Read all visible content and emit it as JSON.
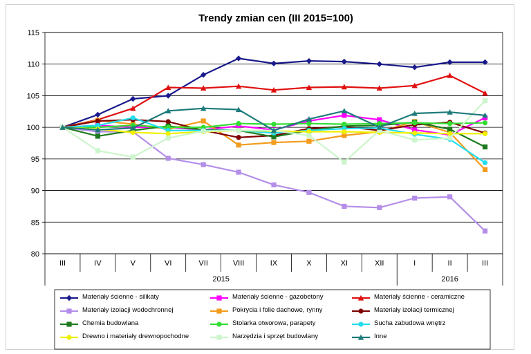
{
  "chart_data": {
    "type": "line",
    "title": "Trendy zmian cen (III 2015=100)",
    "xlabel": "",
    "ylabel": "",
    "ylim": [
      80,
      115
    ],
    "yticks": [
      80,
      85,
      90,
      95,
      100,
      105,
      110,
      115
    ],
    "categories": [
      "III",
      "IV",
      "V",
      "VI",
      "VII",
      "VIII",
      "IX",
      "X",
      "XI",
      "XII",
      "I",
      "II",
      "III"
    ],
    "year_groups": [
      {
        "label": "2015",
        "start": 0,
        "end": 9
      },
      {
        "label": "2016",
        "start": 10,
        "end": 12
      }
    ],
    "grid": true,
    "legend_position": "bottom",
    "series": [
      {
        "name": "Materiały ścienne - silikaty",
        "color": "#1a1a8c",
        "marker": "diamond",
        "values": [
          100,
          102.0,
          104.5,
          105.0,
          108.3,
          110.9,
          110.1,
          110.5,
          110.4,
          110.0,
          109.5,
          110.3,
          110.3
        ]
      },
      {
        "name": "Materiały ścienne - gazobetony",
        "color": "#ff00ff",
        "marker": "square",
        "values": [
          100,
          100.3,
          100.0,
          100.0,
          99.6,
          100.2,
          99.6,
          101.0,
          101.9,
          101.2,
          99.6,
          98.8,
          101.5
        ]
      },
      {
        "name": "Materiały ścienne - ceramiczne",
        "color": "#e01010",
        "marker": "triangle",
        "values": [
          100,
          101.2,
          103.0,
          106.3,
          106.2,
          106.5,
          105.9,
          106.3,
          106.4,
          106.2,
          106.6,
          108.2,
          105.4
        ]
      },
      {
        "name": "Materiały izolacji wodochronnej",
        "color": "#b48ee8",
        "marker": "square",
        "values": [
          100,
          99.3,
          99.3,
          95.1,
          94.1,
          92.9,
          90.9,
          89.7,
          87.5,
          87.3,
          88.8,
          89.0,
          83.6
        ]
      },
      {
        "name": "Pokrycia i folie dachowe, rynny",
        "color": "#f39c1e",
        "marker": "square",
        "values": [
          100,
          101.1,
          100.5,
          99.7,
          101.0,
          97.2,
          97.6,
          97.8,
          98.7,
          99.3,
          100.9,
          99.2,
          93.3
        ]
      },
      {
        "name": "Materiały izolacji termicznej",
        "color": "#800000",
        "marker": "circle",
        "values": [
          100,
          101.0,
          101.2,
          100.9,
          99.5,
          98.4,
          98.7,
          99.8,
          100.1,
          99.5,
          100.4,
          100.8,
          99.1
        ]
      },
      {
        "name": "Chemia budowlana",
        "color": "#1e7a1e",
        "marker": "square",
        "values": [
          100,
          98.6,
          99.5,
          100.2,
          99.6,
          99.5,
          98.5,
          99.5,
          100.2,
          100.3,
          100.8,
          99.7,
          96.9
        ]
      },
      {
        "name": "Stolarka otworowa, parapety",
        "color": "#33dd33",
        "marker": "circle",
        "values": [
          100,
          100.0,
          100.3,
          100.0,
          100.0,
          100.6,
          100.5,
          100.6,
          100.5,
          100.6,
          100.7,
          100.6,
          100.7
        ]
      },
      {
        "name": "Sucha zabudowa wnętrz",
        "color": "#22ddee",
        "marker": "circle",
        "values": [
          100,
          100.3,
          101.5,
          99.5,
          99.5,
          99.5,
          99.1,
          99.5,
          99.8,
          99.9,
          98.9,
          98.1,
          94.4
        ]
      },
      {
        "name": "Drewno i materiały drewnopochodne",
        "color": "#f0f000",
        "marker": "circle",
        "values": [
          100,
          99.7,
          99.2,
          99.0,
          99.3,
          99.5,
          99.4,
          99.3,
          99.3,
          99.2,
          99.1,
          99.0,
          99.0
        ]
      },
      {
        "name": "Narzędzia i sprzęt budowlany",
        "color": "#ccf5cc",
        "marker": "square",
        "values": [
          100,
          96.3,
          95.3,
          98.3,
          99.4,
          99.5,
          99.5,
          98.7,
          94.5,
          99.5,
          98.0,
          98.3,
          104.2
        ]
      },
      {
        "name": "Inne",
        "color": "#1e7b7b",
        "marker": "triangle",
        "values": [
          100,
          99.6,
          99.9,
          102.6,
          103.0,
          102.8,
          99.5,
          101.3,
          102.6,
          100.0,
          102.2,
          102.4,
          101.9
        ]
      }
    ]
  }
}
